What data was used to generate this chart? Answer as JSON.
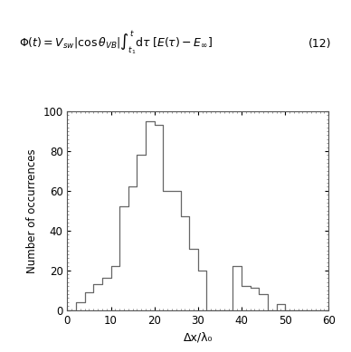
{
  "bin_edges": [
    0,
    2,
    4,
    6,
    8,
    10,
    12,
    14,
    16,
    18,
    20,
    22,
    24,
    26,
    28,
    30,
    32,
    34,
    36,
    38,
    40,
    42,
    44,
    46,
    48,
    50,
    52,
    54,
    56,
    58,
    60
  ],
  "bar_heights": [
    0,
    4,
    9,
    13,
    16,
    22,
    52,
    62,
    78,
    95,
    93,
    60,
    60,
    47,
    31,
    20,
    0,
    0,
    0,
    22,
    12,
    11,
    8,
    0,
    3,
    0,
    0,
    0,
    0,
    0
  ],
  "xlabel": "Δx/λ₀",
  "ylabel": "Number of occurrences",
  "xlim": [
    0,
    60
  ],
  "ylim": [
    0,
    100
  ],
  "xticks": [
    0,
    10,
    20,
    30,
    40,
    50,
    60
  ],
  "yticks": [
    0,
    20,
    40,
    60,
    80,
    100
  ],
  "bar_edge_color": "#666666",
  "background_color": "#ffffff",
  "line_width": 0.9,
  "fig_width": 3.68,
  "fig_height": 3.66,
  "eq_text": "$\\Phi(t) = V_{sw}|\\cos\\theta_{VB}|\\int_{t_1}^{t} \\mathrm{d}\\tau\\;[E(\\tau) - E_\\infty]$",
  "eq_number": "(12)",
  "eq_fontsize": 9,
  "axis_fontsize": 9,
  "ylabel_fontsize": 8.5,
  "tick_labelsize": 8.5
}
